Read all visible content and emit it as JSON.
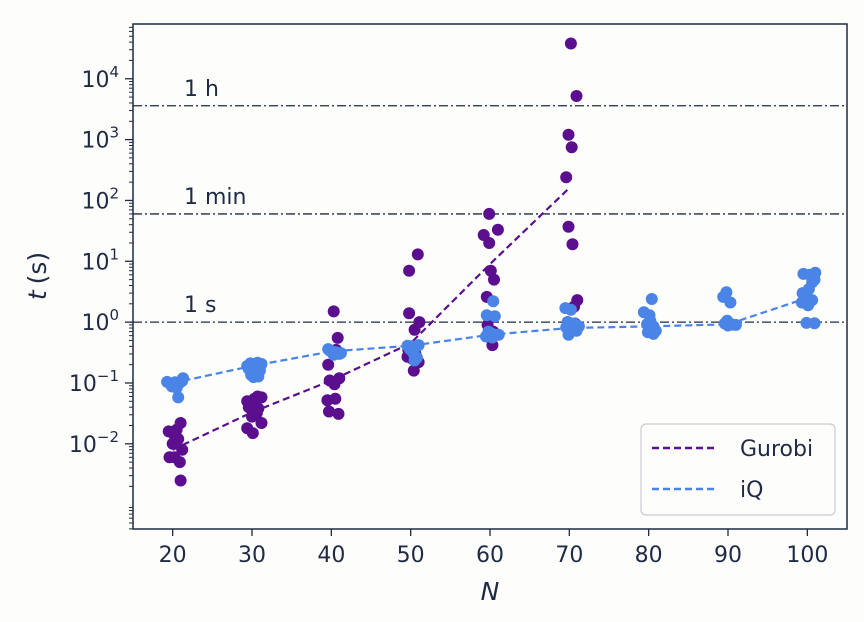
{
  "chart_data": {
    "type": "scatter",
    "xlabel": "N",
    "ylabel_var": "t",
    "ylabel_unit": "(s)",
    "xlim": [
      15,
      105
    ],
    "ylim_log10": [
      -3.4,
      4.9
    ],
    "yscale": "log",
    "grid": false,
    "legend_position": "bottom-right",
    "xticks": [
      20,
      30,
      40,
      50,
      60,
      70,
      80,
      90,
      100
    ],
    "yticks": [
      {
        "exp": -2,
        "base": "10",
        "sup": "−2"
      },
      {
        "exp": -1,
        "base": "10",
        "sup": "−1"
      },
      {
        "exp": 0,
        "base": "10",
        "sup": "0"
      },
      {
        "exp": 1,
        "base": "10",
        "sup": "1"
      },
      {
        "exp": 2,
        "base": "10",
        "sup": "2"
      },
      {
        "exp": 3,
        "base": "10",
        "sup": "3"
      },
      {
        "exp": 4,
        "base": "10",
        "sup": "4"
      }
    ],
    "reference_lines": [
      {
        "label": "1 s",
        "value": 1
      },
      {
        "label": "1 min",
        "value": 60
      },
      {
        "label": "1 h",
        "value": 3600
      }
    ],
    "series": [
      {
        "name": "Gurobi",
        "color": "#5b0f8f",
        "points": [
          [
            19.5,
            0.016
          ],
          [
            20.5,
            0.017
          ],
          [
            21.0,
            0.022
          ],
          [
            20.2,
            0.014
          ],
          [
            20.0,
            0.01
          ],
          [
            20.7,
            0.012
          ],
          [
            21.2,
            0.008
          ],
          [
            19.6,
            0.006
          ],
          [
            20.2,
            0.006
          ],
          [
            20.9,
            0.005
          ],
          [
            21.0,
            0.0025
          ],
          [
            29.4,
            0.05
          ],
          [
            30.3,
            0.055
          ],
          [
            30.7,
            0.06
          ],
          [
            31.2,
            0.058
          ],
          [
            29.6,
            0.04
          ],
          [
            30.8,
            0.038
          ],
          [
            30.0,
            0.028
          ],
          [
            30.6,
            0.032
          ],
          [
            31.2,
            0.022
          ],
          [
            29.4,
            0.018
          ],
          [
            30.1,
            0.015
          ],
          [
            40.3,
            1.5
          ],
          [
            40.8,
            0.55
          ],
          [
            40.6,
            0.35
          ],
          [
            39.6,
            0.2
          ],
          [
            39.8,
            0.11
          ],
          [
            41.0,
            0.12
          ],
          [
            40.4,
            0.095
          ],
          [
            39.5,
            0.052
          ],
          [
            40.5,
            0.055
          ],
          [
            39.7,
            0.034
          ],
          [
            40.9,
            0.031
          ],
          [
            50.9,
            13
          ],
          [
            49.8,
            7
          ],
          [
            49.8,
            1.4
          ],
          [
            51.1,
            1.0
          ],
          [
            50.5,
            0.75
          ],
          [
            49.7,
            0.35
          ],
          [
            50.6,
            0.3
          ],
          [
            49.6,
            0.27
          ],
          [
            50.2,
            0.25
          ],
          [
            51.0,
            0.22
          ],
          [
            50.4,
            0.16
          ],
          [
            59.9,
            60
          ],
          [
            59.2,
            27
          ],
          [
            59.9,
            20
          ],
          [
            61.0,
            33
          ],
          [
            60.1,
            7
          ],
          [
            60.5,
            5
          ],
          [
            59.6,
            2.6
          ],
          [
            59.7,
            0.9
          ],
          [
            60.4,
            0.7
          ],
          [
            60.1,
            0.55
          ],
          [
            60.3,
            0.42
          ],
          [
            70.2,
            38000
          ],
          [
            70.9,
            5200
          ],
          [
            69.9,
            1200
          ],
          [
            70.3,
            750
          ],
          [
            69.6,
            240
          ],
          [
            69.9,
            37
          ],
          [
            70.4,
            19
          ],
          [
            71.0,
            2.3
          ],
          [
            70.6,
            1.8
          ],
          [
            69.8,
            1.0
          ],
          [
            70.7,
            0.95
          ]
        ],
        "trend": [
          [
            20,
            0.008
          ],
          [
            30,
            0.033
          ],
          [
            40,
            0.11
          ],
          [
            50,
            0.45
          ],
          [
            60,
            9
          ],
          [
            70,
            160
          ]
        ]
      },
      {
        "name": "iQ",
        "color": "#4a84e6",
        "points": [
          [
            19.3,
            0.104
          ],
          [
            19.8,
            0.098
          ],
          [
            20.3,
            0.103
          ],
          [
            20.6,
            0.096
          ],
          [
            20.9,
            0.101
          ],
          [
            21.2,
            0.108
          ],
          [
            21.3,
            0.12
          ],
          [
            19.9,
            0.088
          ],
          [
            20.5,
            0.083
          ],
          [
            20.7,
            0.058
          ],
          [
            29.4,
            0.19
          ],
          [
            29.8,
            0.21
          ],
          [
            30.2,
            0.2
          ],
          [
            30.7,
            0.215
          ],
          [
            31.2,
            0.205
          ],
          [
            29.6,
            0.17
          ],
          [
            30.6,
            0.18
          ],
          [
            31.0,
            0.16
          ],
          [
            29.9,
            0.135
          ],
          [
            30.8,
            0.128
          ],
          [
            30.2,
            0.125
          ],
          [
            39.6,
            0.36
          ],
          [
            40.1,
            0.33
          ],
          [
            40.6,
            0.32
          ],
          [
            41.0,
            0.3
          ],
          [
            41.2,
            0.31
          ],
          [
            40.3,
            0.29
          ],
          [
            39.8,
            0.34
          ],
          [
            49.6,
            0.41
          ],
          [
            50.1,
            0.4
          ],
          [
            50.6,
            0.39
          ],
          [
            51.0,
            0.42
          ],
          [
            49.9,
            0.36
          ],
          [
            50.4,
            0.3
          ],
          [
            50.8,
            0.26
          ],
          [
            50.5,
            0.235
          ],
          [
            59.6,
            1.3
          ],
          [
            60.4,
            2.2
          ],
          [
            60.6,
            1.25
          ],
          [
            59.8,
            0.7
          ],
          [
            60.1,
            0.66
          ],
          [
            60.6,
            0.62
          ],
          [
            59.5,
            0.58
          ],
          [
            60.3,
            0.56
          ],
          [
            61.1,
            0.62
          ],
          [
            69.5,
            1.7
          ],
          [
            70.2,
            1.6
          ],
          [
            69.8,
            1.0
          ],
          [
            70.6,
            0.95
          ],
          [
            71.2,
            0.85
          ],
          [
            69.6,
            0.82
          ],
          [
            70.1,
            0.76
          ],
          [
            70.9,
            0.72
          ],
          [
            69.9,
            0.62
          ],
          [
            79.4,
            1.45
          ],
          [
            80.1,
            1.3
          ],
          [
            80.4,
            2.4
          ],
          [
            80.2,
            1.05
          ],
          [
            79.8,
            0.92
          ],
          [
            80.6,
            0.85
          ],
          [
            80.3,
            0.78
          ],
          [
            80.9,
            0.72
          ],
          [
            79.9,
            0.68
          ],
          [
            80.6,
            0.64
          ],
          [
            89.4,
            2.6
          ],
          [
            89.8,
            3.1
          ],
          [
            90.3,
            2.1
          ],
          [
            89.9,
            1.05
          ],
          [
            89.6,
            0.95
          ],
          [
            90.2,
            0.93
          ],
          [
            90.6,
            0.91
          ],
          [
            91.0,
            0.9
          ],
          [
            90.0,
            0.88
          ],
          [
            99.5,
            6.2
          ],
          [
            100.3,
            6.0
          ],
          [
            101.0,
            6.5
          ],
          [
            100.6,
            4.5
          ],
          [
            100.9,
            5.0
          ],
          [
            99.4,
            3.0
          ],
          [
            100.2,
            3.5
          ],
          [
            99.8,
            2.7
          ],
          [
            100.6,
            2.3
          ],
          [
            99.3,
            2.1
          ],
          [
            100.1,
            1.9
          ],
          [
            99.9,
            0.97
          ],
          [
            100.9,
            0.96
          ]
        ],
        "trend": [
          [
            20,
            0.1
          ],
          [
            30,
            0.19
          ],
          [
            40,
            0.33
          ],
          [
            50,
            0.41
          ],
          [
            60,
            0.62
          ],
          [
            70,
            0.8
          ],
          [
            80,
            0.85
          ],
          [
            90,
            0.92
          ],
          [
            100,
            2.5
          ]
        ]
      }
    ]
  }
}
